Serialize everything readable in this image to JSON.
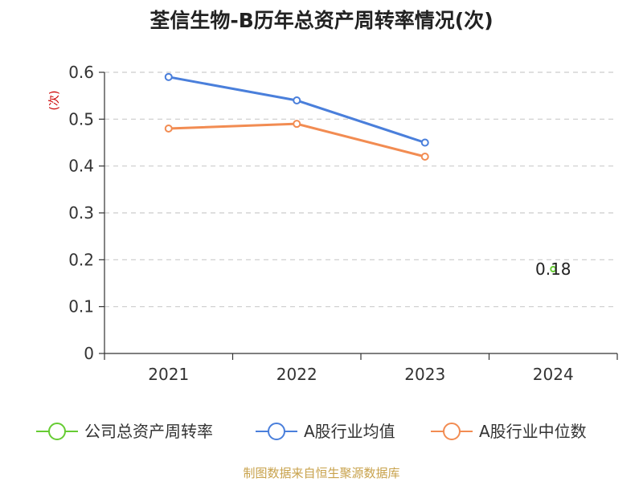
{
  "chart_data": {
    "type": "line",
    "title": "荃信生物-B历年总资产周转率情况(次)",
    "ylabel": "(次)",
    "categories": [
      "2021",
      "2022",
      "2023",
      "2024"
    ],
    "ylim": [
      0,
      0.6
    ],
    "yticks": [
      "0",
      "0.1",
      "0.2",
      "0.3",
      "0.4",
      "0.5",
      "0.6"
    ],
    "grid": true,
    "legend_position": "bottom",
    "series": [
      {
        "name": "公司总资产周转率",
        "color": "#66cc33",
        "values": [
          null,
          null,
          null,
          0.18
        ],
        "data_labels": [
          "",
          "",
          "",
          "0.18"
        ]
      },
      {
        "name": "A股行业均值",
        "color": "#4a7fdb",
        "values": [
          0.59,
          0.54,
          0.45,
          null
        ],
        "data_labels": [
          "",
          "",
          "",
          ""
        ]
      },
      {
        "name": "A股行业中位数",
        "color": "#f28c52",
        "values": [
          0.48,
          0.49,
          0.42,
          null
        ],
        "data_labels": [
          "",
          "",
          "",
          ""
        ]
      }
    ]
  },
  "footer": {
    "credit": "制图数据来自恒生聚源数据库"
  }
}
